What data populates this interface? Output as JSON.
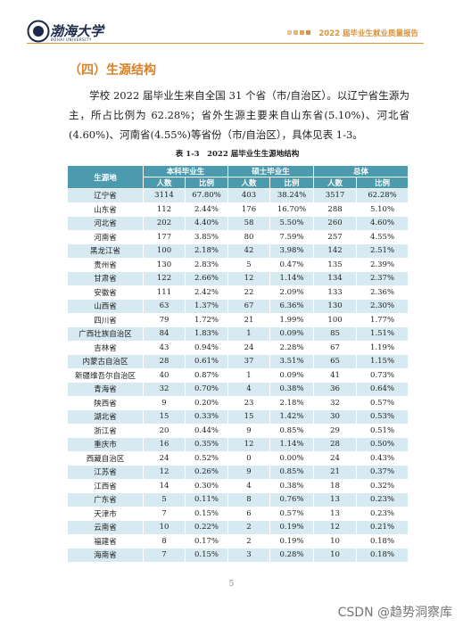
{
  "header": {
    "logo_text": "渤海大学",
    "logo_subtext": "BOHAI UNIVERSITY",
    "report_title": "2022 届毕业生就业质量报告"
  },
  "section_title": "（四）生源结构",
  "paragraph": "学校 2022 届毕业生来自全国 31 个省（市/自治区）。以辽宁省生源为主，所占比例为 62.28%；省外生源主要来自山东省(5.10%)、河北省(4.60%)、河南省(4.55%)等省份（市/自治区），具体见表 1-3。",
  "table": {
    "caption": "表 1-3　2022 届毕业生生源地结构",
    "first_header": "生源地",
    "groups": [
      "本科毕业生",
      "硕士毕业生",
      "总体"
    ],
    "subheaders": [
      "人数",
      "比例",
      "人数",
      "比例",
      "人数",
      "比例"
    ],
    "rows": [
      [
        "辽宁省",
        "3114",
        "67.80%",
        "403",
        "38.24%",
        "3517",
        "62.28%"
      ],
      [
        "山东省",
        "112",
        "2.44%",
        "176",
        "16.70%",
        "288",
        "5.10%"
      ],
      [
        "河北省",
        "202",
        "4.40%",
        "58",
        "5.50%",
        "260",
        "4.60%"
      ],
      [
        "河南省",
        "177",
        "3.85%",
        "80",
        "7.59%",
        "257",
        "4.55%"
      ],
      [
        "黑龙江省",
        "100",
        "2.18%",
        "42",
        "3.98%",
        "142",
        "2.51%"
      ],
      [
        "贵州省",
        "130",
        "2.83%",
        "5",
        "0.47%",
        "135",
        "2.39%"
      ],
      [
        "甘肃省",
        "122",
        "2.66%",
        "12",
        "1.14%",
        "134",
        "2.37%"
      ],
      [
        "安徽省",
        "111",
        "2.42%",
        "22",
        "2.09%",
        "133",
        "2.36%"
      ],
      [
        "山西省",
        "63",
        "1.37%",
        "67",
        "6.36%",
        "130",
        "2.30%"
      ],
      [
        "四川省",
        "79",
        "1.72%",
        "21",
        "1.99%",
        "100",
        "1.77%"
      ],
      [
        "广西壮族自治区",
        "84",
        "1.83%",
        "1",
        "0.09%",
        "85",
        "1.51%"
      ],
      [
        "吉林省",
        "43",
        "0.94%",
        "24",
        "2.28%",
        "67",
        "1.19%"
      ],
      [
        "内蒙古自治区",
        "28",
        "0.61%",
        "37",
        "3.51%",
        "65",
        "1.15%"
      ],
      [
        "新疆维吾尔自治区",
        "40",
        "0.87%",
        "1",
        "0.09%",
        "41",
        "0.73%"
      ],
      [
        "青海省",
        "32",
        "0.70%",
        "4",
        "0.38%",
        "36",
        "0.64%"
      ],
      [
        "陕西省",
        "9",
        "0.20%",
        "23",
        "2.18%",
        "32",
        "0.57%"
      ],
      [
        "湖北省",
        "15",
        "0.33%",
        "15",
        "1.42%",
        "30",
        "0.53%"
      ],
      [
        "浙江省",
        "20",
        "0.44%",
        "9",
        "0.85%",
        "29",
        "0.51%"
      ],
      [
        "重庆市",
        "16",
        "0.35%",
        "12",
        "1.14%",
        "28",
        "0.50%"
      ],
      [
        "西藏自治区",
        "24",
        "0.52%",
        "0",
        "0.00%",
        "24",
        "0.43%"
      ],
      [
        "江苏省",
        "12",
        "0.26%",
        "9",
        "0.85%",
        "21",
        "0.37%"
      ],
      [
        "江西省",
        "14",
        "0.30%",
        "4",
        "0.38%",
        "18",
        "0.32%"
      ],
      [
        "广东省",
        "5",
        "0.11%",
        "8",
        "0.76%",
        "13",
        "0.23%"
      ],
      [
        "天津市",
        "7",
        "0.15%",
        "6",
        "0.57%",
        "13",
        "0.23%"
      ],
      [
        "云南省",
        "10",
        "0.22%",
        "2",
        "0.19%",
        "12",
        "0.21%"
      ],
      [
        "福建省",
        "8",
        "0.17%",
        "2",
        "0.19%",
        "10",
        "0.18%"
      ],
      [
        "海南省",
        "7",
        "0.15%",
        "3",
        "0.28%",
        "10",
        "0.18%"
      ]
    ]
  },
  "page_number": "5",
  "watermark": "CSDN @趋势洞察库"
}
